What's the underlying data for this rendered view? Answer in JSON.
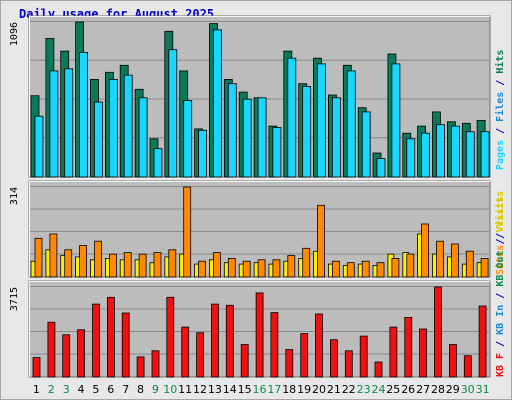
{
  "title": "Daily usage for August 2025",
  "colors": {
    "hits": "#0a7a5a",
    "files": "#1ad6ff",
    "pages": "#1ad6ff",
    "sites": "#ff8a00",
    "visits": "#ffee00",
    "kbin": "#ee1111",
    "panel_bg": "#bcbcbc",
    "grid": "#8a8a8a",
    "weekend": "#0a8a4a",
    "weekday": "#000000"
  },
  "chart_data": [
    {
      "type": "bar",
      "name": "hits-files-pages",
      "ymax_label": "1096",
      "ymax": 1096,
      "categories": [
        "1",
        "2",
        "3",
        "4",
        "5",
        "6",
        "7",
        "8",
        "9",
        "10",
        "11",
        "12",
        "13",
        "14",
        "15",
        "16",
        "17",
        "18",
        "19",
        "20",
        "21",
        "22",
        "23",
        "24",
        "25",
        "26",
        "27",
        "28",
        "29",
        "30",
        "31"
      ],
      "series": [
        {
          "name": "Hits",
          "values": [
            575,
            980,
            890,
            1096,
            690,
            740,
            790,
            620,
            270,
            1030,
            750,
            340,
            1085,
            690,
            600,
            560,
            360,
            890,
            660,
            840,
            580,
            790,
            490,
            170,
            870,
            310,
            360,
            460,
            390,
            380,
            400
          ]
        },
        {
          "name": "Files",
          "values": [
            430,
            750,
            765,
            880,
            530,
            690,
            720,
            560,
            200,
            900,
            540,
            330,
            1040,
            660,
            550,
            560,
            350,
            840,
            640,
            800,
            560,
            750,
            460,
            130,
            800,
            270,
            310,
            370,
            360,
            320,
            320
          ]
        }
      ],
      "legend": [
        "Pages",
        "Files",
        "Hits"
      ]
    },
    {
      "type": "bar",
      "name": "visits-sites",
      "ymax_label": "314",
      "ymax": 314,
      "categories": [
        "1",
        "2",
        "3",
        "4",
        "5",
        "6",
        "7",
        "8",
        "9",
        "10",
        "11",
        "12",
        "13",
        "14",
        "15",
        "16",
        "17",
        "18",
        "19",
        "20",
        "21",
        "22",
        "23",
        "24",
        "25",
        "26",
        "27",
        "28",
        "29",
        "30",
        "31"
      ],
      "series": [
        {
          "name": "Visits",
          "values": [
            55,
            95,
            75,
            70,
            60,
            65,
            60,
            60,
            50,
            70,
            80,
            45,
            60,
            50,
            45,
            50,
            45,
            55,
            65,
            90,
            45,
            40,
            45,
            40,
            80,
            85,
            150,
            80,
            70,
            45,
            50
          ]
        },
        {
          "name": "Sites",
          "values": [
            135,
            150,
            95,
            110,
            125,
            80,
            85,
            80,
            85,
            95,
            314,
            55,
            85,
            65,
            55,
            60,
            60,
            75,
            100,
            250,
            55,
            50,
            55,
            50,
            65,
            80,
            185,
            125,
            115,
            90,
            65
          ]
        }
      ],
      "legend": [
        "Visits",
        "Sites"
      ]
    },
    {
      "type": "bar",
      "name": "kb",
      "ymax_label": "3715",
      "ymax": 3715,
      "categories": [
        "1",
        "2",
        "3",
        "4",
        "5",
        "6",
        "7",
        "8",
        "9",
        "10",
        "11",
        "12",
        "13",
        "14",
        "15",
        "16",
        "17",
        "18",
        "19",
        "20",
        "21",
        "22",
        "23",
        "24",
        "25",
        "26",
        "27",
        "28",
        "29",
        "30",
        "31"
      ],
      "series": [
        {
          "name": "KB F",
          "values": [
            800,
            2260,
            1740,
            1950,
            3010,
            3290,
            2640,
            830,
            1080,
            3290,
            2060,
            1830,
            3010,
            2960,
            1340,
            3470,
            2660,
            1130,
            1790,
            2600,
            1540,
            1080,
            1690,
            620,
            2060,
            2460,
            1980,
            3715,
            1340,
            880,
            2930
          ]
        }
      ],
      "legend": [
        "KB F",
        "KB In",
        "KB Out",
        "Visits"
      ]
    }
  ]
}
